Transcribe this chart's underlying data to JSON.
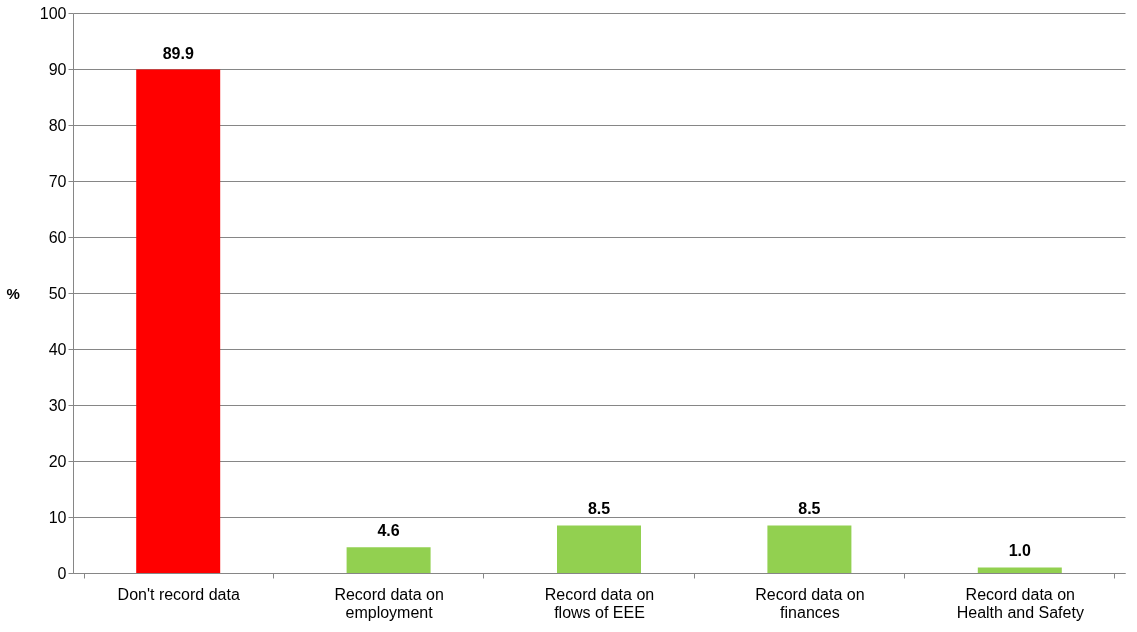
{
  "chart_data": {
    "type": "bar",
    "ylabel": "%",
    "categories": [
      "Don't record data",
      "Record data on employment",
      "Record data on flows of EEE",
      "Record data on finances",
      "Record data on Health and Safety"
    ],
    "values": [
      89.9,
      4.6,
      8.5,
      8.5,
      1.0
    ],
    "colors": [
      "#ff0000",
      "#92d050",
      "#92d050",
      "#92d050",
      "#92d050"
    ],
    "value_labels": [
      "89.9",
      "4.6",
      "8.5",
      "8.5",
      "1.0"
    ],
    "ylim": [
      0,
      100
    ],
    "yticks": [
      0,
      10,
      20,
      30,
      40,
      50,
      60,
      70,
      80,
      90,
      100
    ],
    "grid": "y"
  }
}
